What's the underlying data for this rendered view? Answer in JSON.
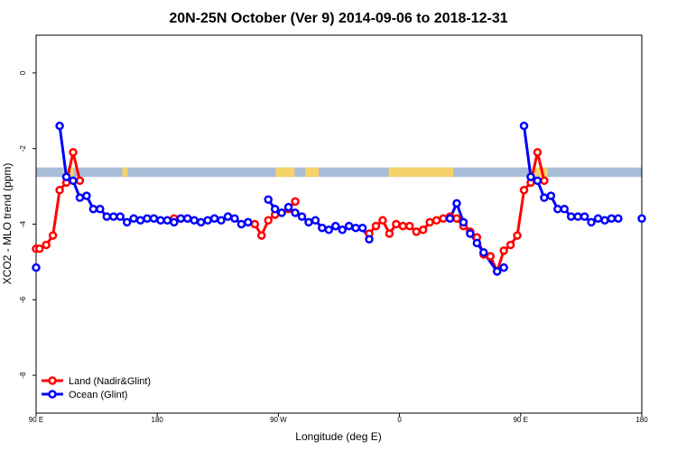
{
  "chart_data": {
    "type": "line",
    "title": "20N-25N October (Ver 9)   2014-09-06 to 2018-12-31",
    "xlabel": "Longitude (deg E)",
    "ylabel": "XCO2 - MLO trend (ppm)",
    "xlim": [
      90,
      540
    ],
    "ylim": [
      -9,
      1
    ],
    "x_ticks": [
      {
        "value": 90,
        "label": "90 E"
      },
      {
        "value": 180,
        "label": "180"
      },
      {
        "value": 270,
        "label": "90 W"
      },
      {
        "value": 360,
        "label": "0"
      },
      {
        "value": 450,
        "label": "90 E"
      },
      {
        "value": 540,
        "label": "180"
      }
    ],
    "y_ticks": [
      {
        "value": 0,
        "label": "0"
      },
      {
        "value": -2,
        "label": "-2"
      },
      {
        "value": -4,
        "label": "-4"
      },
      {
        "value": -6,
        "label": "-6"
      },
      {
        "value": -8,
        "label": "-8"
      }
    ],
    "legend_position": "bottom-left",
    "colors": {
      "land": "#ff0000",
      "ocean": "#0000ff",
      "band_ocean": "#a8bcd8",
      "band_land": "#f6d36a"
    },
    "land_band": {
      "y_range": [
        -2.75,
        -2.5
      ]
    },
    "series": [
      {
        "name": "Land (Nadir&Glint)",
        "color": "#ff0000",
        "points": [
          [
            90,
            -4.65
          ],
          [
            92.5,
            -4.65
          ],
          [
            97.5,
            -4.55
          ],
          [
            102.5,
            -4.3
          ],
          [
            107.5,
            -3.1
          ],
          [
            112.5,
            -2.9
          ],
          [
            117.5,
            -2.1
          ],
          [
            122.5,
            -2.85
          ],
          [
            192.5,
            -3.85
          ],
          [
            197.5,
            -3.85
          ],
          [
            202.5,
            -3.85
          ],
          [
            252.5,
            -4.0
          ],
          [
            257.5,
            -4.3
          ],
          [
            262.5,
            -3.9
          ],
          [
            267.5,
            -3.75
          ],
          [
            277.5,
            -3.6
          ],
          [
            282.5,
            -3.4
          ],
          [
            337.5,
            -4.25
          ],
          [
            342.5,
            -4.05
          ],
          [
            347.5,
            -3.9
          ],
          [
            352.5,
            -4.25
          ],
          [
            357.5,
            -4.0
          ],
          [
            362.5,
            -4.05
          ],
          [
            367.5,
            -4.05
          ],
          [
            372.5,
            -4.2
          ],
          [
            377.5,
            -4.15
          ],
          [
            382.5,
            -3.95
          ],
          [
            387.5,
            -3.9
          ],
          [
            392.5,
            -3.85
          ],
          [
            397.5,
            -3.8
          ],
          [
            402.5,
            -3.85
          ],
          [
            407.5,
            -4.05
          ],
          [
            412.5,
            -4.2
          ],
          [
            417.5,
            -4.35
          ],
          [
            422.5,
            -4.8
          ],
          [
            427.5,
            -4.85
          ],
          [
            432.5,
            -5.25
          ],
          [
            437.5,
            -4.7
          ],
          [
            442.5,
            -4.55
          ],
          [
            447.5,
            -4.3
          ],
          [
            452.5,
            -3.1
          ],
          [
            457.5,
            -2.9
          ],
          [
            462.5,
            -2.1
          ],
          [
            467.5,
            -2.85
          ]
        ]
      },
      {
        "name": "Ocean (Glint)",
        "color": "#0000ff",
        "points": [
          [
            90,
            -5.15
          ],
          [
            107.5,
            -1.4
          ],
          [
            112.5,
            -2.75
          ],
          [
            117.5,
            -2.85
          ],
          [
            122.5,
            -3.3
          ],
          [
            127.5,
            -3.25
          ],
          [
            132.5,
            -3.6
          ],
          [
            137.5,
            -3.6
          ],
          [
            142.5,
            -3.8
          ],
          [
            147.5,
            -3.8
          ],
          [
            152.5,
            -3.8
          ],
          [
            157.5,
            -3.95
          ],
          [
            162.5,
            -3.85
          ],
          [
            167.5,
            -3.9
          ],
          [
            172.5,
            -3.85
          ],
          [
            177.5,
            -3.85
          ],
          [
            182.5,
            -3.9
          ],
          [
            187.5,
            -3.9
          ],
          [
            192.5,
            -3.95
          ],
          [
            197.5,
            -3.85
          ],
          [
            202.5,
            -3.85
          ],
          [
            207.5,
            -3.9
          ],
          [
            212.5,
            -3.95
          ],
          [
            217.5,
            -3.9
          ],
          [
            222.5,
            -3.85
          ],
          [
            227.5,
            -3.9
          ],
          [
            232.5,
            -3.8
          ],
          [
            237.5,
            -3.85
          ],
          [
            242.5,
            -4.0
          ],
          [
            247.5,
            -3.95
          ],
          [
            262.5,
            -3.35
          ],
          [
            267.5,
            -3.6
          ],
          [
            272.5,
            -3.7
          ],
          [
            277.5,
            -3.55
          ],
          [
            282.5,
            -3.7
          ],
          [
            287.5,
            -3.8
          ],
          [
            292.5,
            -3.95
          ],
          [
            297.5,
            -3.9
          ],
          [
            302.5,
            -4.1
          ],
          [
            307.5,
            -4.15
          ],
          [
            312.5,
            -4.05
          ],
          [
            317.5,
            -4.15
          ],
          [
            322.5,
            -4.05
          ],
          [
            327.5,
            -4.1
          ],
          [
            332.5,
            -4.1
          ],
          [
            337.5,
            -4.4
          ],
          [
            397.5,
            -3.85
          ],
          [
            402.5,
            -3.45
          ],
          [
            407.5,
            -3.95
          ],
          [
            412.5,
            -4.25
          ],
          [
            417.5,
            -4.5
          ],
          [
            422.5,
            -4.75
          ],
          [
            432.5,
            -5.25
          ],
          [
            437.5,
            -5.15
          ],
          [
            452.5,
            -1.4
          ],
          [
            457.5,
            -2.75
          ],
          [
            462.5,
            -2.85
          ],
          [
            467.5,
            -3.3
          ],
          [
            472.5,
            -3.25
          ],
          [
            477.5,
            -3.6
          ],
          [
            482.5,
            -3.6
          ],
          [
            487.5,
            -3.8
          ],
          [
            492.5,
            -3.8
          ],
          [
            497.5,
            -3.8
          ],
          [
            502.5,
            -3.95
          ],
          [
            507.5,
            -3.85
          ],
          [
            512.5,
            -3.9
          ],
          [
            517.5,
            -3.85
          ],
          [
            522.5,
            -3.85
          ],
          [
            540,
            -3.85
          ]
        ]
      }
    ]
  }
}
